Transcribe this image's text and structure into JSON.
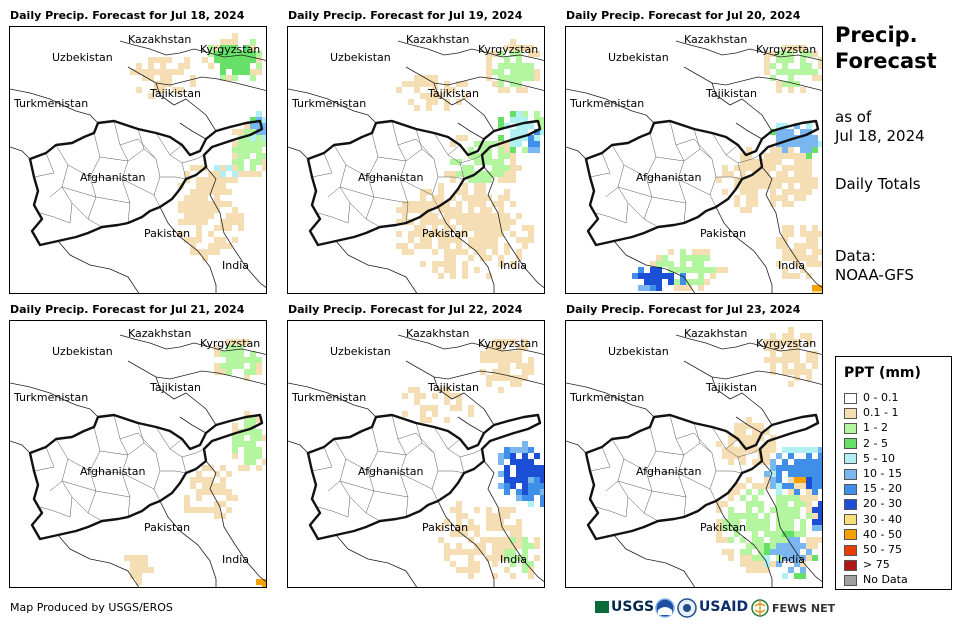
{
  "panels": [
    {
      "title": "Daily Precip. Forecast for Jul 18, 2024"
    },
    {
      "title": "Daily Precip. Forecast for Jul 19, 2024"
    },
    {
      "title": "Daily Precip. Forecast for Jul 20, 2024"
    },
    {
      "title": "Daily Precip. Forecast for Jul 21, 2024"
    },
    {
      "title": "Daily Precip. Forecast for Jul 22, 2024"
    },
    {
      "title": "Daily Precip. Forecast for Jul 23, 2024"
    }
  ],
  "map_labels": {
    "kazakhstan": "Kazakhstan",
    "uzbekistan": "Uzbekistan",
    "kyrgyzstan": "Kyrgyzstan",
    "tajikistan": "Tajikistan",
    "turkmenistan": "Turkmenistan",
    "afghanistan": "Afghanistan",
    "pakistan": "Pakistan",
    "india": "India"
  },
  "side": {
    "title_line1": "Precip.",
    "title_line2": "Forecast",
    "as_of_line1": "as of",
    "as_of_line2": "Jul 18, 2024",
    "totals": "Daily Totals",
    "data_line1": "Data:",
    "data_line2": "NOAA-GFS"
  },
  "legend": {
    "title": "PPT (mm)",
    "items": [
      {
        "label": "0 - 0.1",
        "color": "#ffffff"
      },
      {
        "label": "0.1 - 1",
        "color": "#f5deb3"
      },
      {
        "label": "1 - 2",
        "color": "#b4f5a0"
      },
      {
        "label": "2 - 5",
        "color": "#66e066"
      },
      {
        "label": "5 - 10",
        "color": "#b0f0f5"
      },
      {
        "label": "10 - 15",
        "color": "#7ab6f0"
      },
      {
        "label": "15 - 20",
        "color": "#3f8ee8"
      },
      {
        "label": "20 - 30",
        "color": "#1a4fd6"
      },
      {
        "label": "30 - 40",
        "color": "#f5e07a"
      },
      {
        "label": "40 - 50",
        "color": "#f5a000"
      },
      {
        "label": "50 - 75",
        "color": "#e83c00"
      },
      {
        "label": "> 75",
        "color": "#b01818"
      },
      {
        "label": "No Data",
        "color": "#a0a0a0"
      }
    ]
  },
  "credit": "Map Produced by USGS/EROS",
  "logos": {
    "usgs": "USGS",
    "usaid": "USAID",
    "fewsnet": "FEWS NET"
  }
}
